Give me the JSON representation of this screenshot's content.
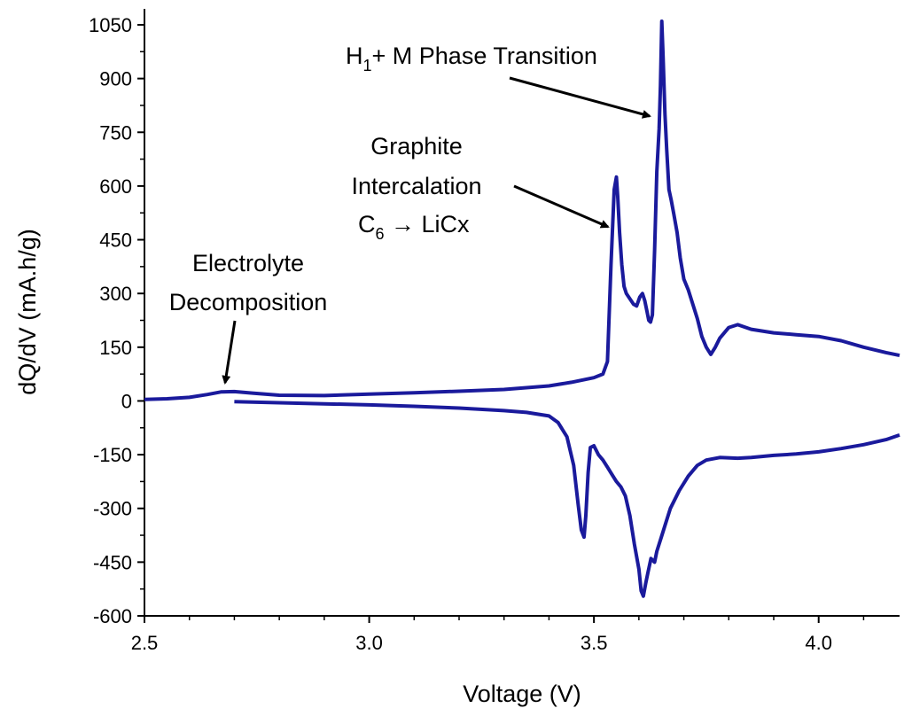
{
  "chart_data": {
    "type": "line",
    "title": "",
    "xlabel": "Voltage (V)",
    "ylabel": "dQ/dV (mA.h/g)",
    "xlim": [
      2.5,
      4.18
    ],
    "ylim": [
      -600,
      1050
    ],
    "x_ticks": [
      "2.5",
      "3.0",
      "3.5",
      "4.0"
    ],
    "x_tick_values": [
      2.5,
      3.0,
      3.5,
      4.0
    ],
    "y_ticks": [
      "1050",
      "900",
      "750",
      "600",
      "450",
      "300",
      "150",
      "0",
      "-150",
      "-300",
      "-450",
      "-600"
    ],
    "y_tick_values": [
      1050,
      900,
      750,
      600,
      450,
      300,
      150,
      0,
      -150,
      -300,
      -450,
      -600
    ],
    "grid": false,
    "line_color": "#1a1a9c",
    "series": [
      {
        "points": [
          [
            2.5,
            4
          ],
          [
            2.55,
            6
          ],
          [
            2.6,
            10
          ],
          [
            2.64,
            18
          ],
          [
            2.67,
            25
          ],
          [
            2.7,
            26
          ],
          [
            2.74,
            22
          ],
          [
            2.8,
            16
          ],
          [
            2.9,
            15
          ],
          [
            3.0,
            19
          ],
          [
            3.1,
            23
          ],
          [
            3.2,
            27
          ],
          [
            3.3,
            32
          ],
          [
            3.4,
            42
          ],
          [
            3.45,
            52
          ],
          [
            3.5,
            65
          ],
          [
            3.52,
            75
          ],
          [
            3.53,
            110
          ],
          [
            3.538,
            380
          ],
          [
            3.545,
            590
          ],
          [
            3.55,
            625
          ],
          [
            3.553,
            570
          ],
          [
            3.557,
            470
          ],
          [
            3.562,
            380
          ],
          [
            3.567,
            320
          ],
          [
            3.572,
            300
          ],
          [
            3.58,
            285
          ],
          [
            3.588,
            270
          ],
          [
            3.595,
            265
          ],
          [
            3.602,
            290
          ],
          [
            3.608,
            300
          ],
          [
            3.613,
            280
          ],
          [
            3.618,
            250
          ],
          [
            3.622,
            225
          ],
          [
            3.626,
            220
          ],
          [
            3.63,
            240
          ],
          [
            3.635,
            420
          ],
          [
            3.64,
            640
          ],
          [
            3.645,
            760
          ],
          [
            3.648,
            880
          ],
          [
            3.651,
            1060
          ],
          [
            3.654,
            960
          ],
          [
            3.658,
            800
          ],
          [
            3.662,
            700
          ],
          [
            3.667,
            590
          ],
          [
            3.672,
            560
          ],
          [
            3.678,
            520
          ],
          [
            3.685,
            470
          ],
          [
            3.692,
            400
          ],
          [
            3.7,
            340
          ],
          [
            3.71,
            310
          ],
          [
            3.72,
            270
          ],
          [
            3.73,
            230
          ],
          [
            3.74,
            180
          ],
          [
            3.75,
            150
          ],
          [
            3.76,
            130
          ],
          [
            3.77,
            150
          ],
          [
            3.78,
            175
          ],
          [
            3.8,
            205
          ],
          [
            3.82,
            213
          ],
          [
            3.85,
            200
          ],
          [
            3.9,
            190
          ],
          [
            3.95,
            185
          ],
          [
            4.0,
            180
          ],
          [
            4.05,
            168
          ],
          [
            4.1,
            150
          ],
          [
            4.15,
            135
          ],
          [
            4.18,
            127
          ]
        ]
      },
      {
        "points": [
          [
            2.7,
            -2
          ],
          [
            2.8,
            -5
          ],
          [
            2.9,
            -8
          ],
          [
            3.0,
            -11
          ],
          [
            3.1,
            -15
          ],
          [
            3.2,
            -20
          ],
          [
            3.3,
            -27
          ],
          [
            3.35,
            -32
          ],
          [
            3.4,
            -42
          ],
          [
            3.42,
            -60
          ],
          [
            3.44,
            -100
          ],
          [
            3.455,
            -180
          ],
          [
            3.465,
            -290
          ],
          [
            3.472,
            -360
          ],
          [
            3.478,
            -380
          ],
          [
            3.482,
            -320
          ],
          [
            3.487,
            -200
          ],
          [
            3.492,
            -130
          ],
          [
            3.5,
            -125
          ],
          [
            3.51,
            -150
          ],
          [
            3.52,
            -165
          ],
          [
            3.53,
            -185
          ],
          [
            3.54,
            -205
          ],
          [
            3.55,
            -225
          ],
          [
            3.56,
            -240
          ],
          [
            3.57,
            -265
          ],
          [
            3.58,
            -320
          ],
          [
            3.59,
            -400
          ],
          [
            3.6,
            -470
          ],
          [
            3.605,
            -530
          ],
          [
            3.61,
            -545
          ],
          [
            3.615,
            -510
          ],
          [
            3.62,
            -480
          ],
          [
            3.627,
            -440
          ],
          [
            3.635,
            -450
          ],
          [
            3.64,
            -420
          ],
          [
            3.65,
            -380
          ],
          [
            3.66,
            -340
          ],
          [
            3.67,
            -300
          ],
          [
            3.69,
            -250
          ],
          [
            3.71,
            -210
          ],
          [
            3.73,
            -180
          ],
          [
            3.75,
            -165
          ],
          [
            3.78,
            -158
          ],
          [
            3.82,
            -160
          ],
          [
            3.85,
            -158
          ],
          [
            3.9,
            -152
          ],
          [
            3.95,
            -148
          ],
          [
            4.0,
            -142
          ],
          [
            4.05,
            -133
          ],
          [
            4.1,
            -122
          ],
          [
            4.15,
            -108
          ],
          [
            4.18,
            -95
          ]
        ]
      }
    ],
    "annotations": [
      {
        "lines": [
          "H",
          "1",
          "+ M Phase Transition"
        ],
        "target": [
          3.642,
          775
        ]
      },
      {
        "lines": [
          "Graphite",
          "Intercalation",
          "C",
          "6",
          " → LiCx"
        ],
        "target": [
          3.535,
          480
        ]
      },
      {
        "lines": [
          "Electrolyte",
          "Decomposition"
        ],
        "target": [
          2.67,
          38
        ]
      }
    ]
  }
}
